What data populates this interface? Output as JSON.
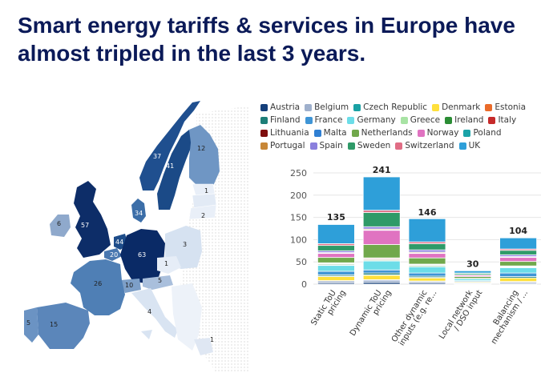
{
  "title": {
    "line1": "Smart energy tariffs & services in Europe have",
    "line2": "almost tripled in the last 3 years."
  },
  "map": {
    "labels": [
      {
        "country": "Norway",
        "value": "37"
      },
      {
        "country": "Sweden",
        "value": "41"
      },
      {
        "country": "Finland",
        "value": "12"
      },
      {
        "country": "Estonia",
        "value": "1"
      },
      {
        "country": "Latvia",
        "value": "2"
      },
      {
        "country": "Denmark",
        "value": "34"
      },
      {
        "country": "Ireland",
        "value": "6"
      },
      {
        "country": "United Kingdom",
        "value": "57"
      },
      {
        "country": "Netherlands",
        "value": "44"
      },
      {
        "country": "Belgium",
        "value": "20"
      },
      {
        "country": "Germany",
        "value": "63"
      },
      {
        "country": "Poland",
        "value": "3"
      },
      {
        "country": "Czech Republic",
        "value": "1"
      },
      {
        "country": "Austria",
        "value": "5"
      },
      {
        "country": "Switzerland",
        "value": "10"
      },
      {
        "country": "France",
        "value": "26"
      },
      {
        "country": "Italy",
        "value": "4"
      },
      {
        "country": "Spain",
        "value": "15"
      },
      {
        "country": "Portugal",
        "value": "5"
      },
      {
        "country": "Greece",
        "value": "1"
      }
    ]
  },
  "colors": {
    "Austria": "#143f7a",
    "Belgium": "#9fb0cc",
    "Czech Republic": "#19a1a4",
    "Denmark": "#ffe03c",
    "Estonia": "#ea6b2a",
    "Finland": "#1d7e78",
    "France": "#3f95d6",
    "Germany": "#6cdde8",
    "Greece": "#a8e3a4",
    "Ireland": "#2b8d35",
    "Italy": "#c62a2a",
    "Lithuania": "#7e0e0e",
    "Malta": "#2f7fd3",
    "Netherlands": "#71a84c",
    "Norway": "#e073c1",
    "Poland": "#1ba3a8",
    "Portugal": "#c78737",
    "Spain": "#8a7fdd",
    "Sweden": "#2f9a68",
    "Switzerland": "#e06d85",
    "UK": "#2e9fd9"
  },
  "chart_data": {
    "type": "bar",
    "stacked": true,
    "categories": [
      "Static ToU pricing",
      "Dynamic ToU pricing",
      "Other dynamic inputs (e.g. re...",
      "Local network / DSO input",
      "Balancing mechanism / ..."
    ],
    "category_lines": [
      [
        "Static ToU",
        "pricing"
      ],
      [
        "Dynamic ToU",
        "pricing"
      ],
      [
        "Other dynamic",
        "inputs (e.g. re..."
      ],
      [
        "Local network",
        "/ DSO input"
      ],
      [
        "Balancing",
        "mechanism / ..."
      ]
    ],
    "totals": [
      135,
      241,
      146,
      30,
      104
    ],
    "ylim": [
      0,
      250
    ],
    "yticks": [
      0,
      50,
      100,
      150,
      200,
      250
    ],
    "legend": [
      "Austria",
      "Belgium",
      "Czech Republic",
      "Denmark",
      "Estonia",
      "Finland",
      "France",
      "Germany",
      "Greece",
      "Ireland",
      "Italy",
      "Lithuania",
      "Malta",
      "Netherlands",
      "Norway",
      "Poland",
      "Portugal",
      "Spain",
      "Sweden",
      "Switzerland",
      "UK"
    ],
    "legend_rows": [
      [
        "Austria",
        "Belgium",
        "Czech Republic",
        "Denmark",
        "Estonia"
      ],
      [
        "Finland",
        "France",
        "Germany",
        "Greece",
        "Ireland",
        "Italy"
      ],
      [
        "Lithuania",
        "Malta",
        "Netherlands",
        "Norway",
        "Poland"
      ],
      [
        "Portugal",
        "Spain",
        "Sweden",
        "Switzerland",
        "UK"
      ]
    ],
    "series": [
      {
        "name": "Austria",
        "values": [
          3,
          4,
          3,
          1,
          2
        ]
      },
      {
        "name": "Belgium",
        "values": [
          4,
          5,
          3,
          2,
          3
        ]
      },
      {
        "name": "Czech Republic",
        "values": [
          1,
          1,
          1,
          0,
          1
        ]
      },
      {
        "name": "Denmark",
        "values": [
          9,
          10,
          7,
          2,
          8
        ]
      },
      {
        "name": "Estonia",
        "values": [
          1,
          1,
          1,
          0,
          0
        ]
      },
      {
        "name": "Finland",
        "values": [
          3,
          4,
          3,
          1,
          3
        ]
      },
      {
        "name": "France",
        "values": [
          8,
          7,
          7,
          2,
          8
        ]
      },
      {
        "name": "Germany",
        "values": [
          13,
          20,
          14,
          4,
          12
        ]
      },
      {
        "name": "Greece",
        "values": [
          1,
          1,
          1,
          0,
          1
        ]
      },
      {
        "name": "Ireland",
        "values": [
          2,
          2,
          2,
          1,
          1
        ]
      },
      {
        "name": "Italy",
        "values": [
          1,
          2,
          1,
          0,
          1
        ]
      },
      {
        "name": "Lithuania",
        "values": [
          1,
          1,
          1,
          0,
          1
        ]
      },
      {
        "name": "Malta",
        "values": [
          1,
          1,
          1,
          0,
          0
        ]
      },
      {
        "name": "Netherlands",
        "values": [
          12,
          30,
          14,
          4,
          10
        ]
      },
      {
        "name": "Norway",
        "values": [
          9,
          32,
          10,
          3,
          9
        ]
      },
      {
        "name": "Poland",
        "values": [
          1,
          1,
          1,
          0,
          1
        ]
      },
      {
        "name": "Portugal",
        "values": [
          1,
          2,
          2,
          0,
          1
        ]
      },
      {
        "name": "Spain",
        "values": [
          4,
          5,
          5,
          1,
          4
        ]
      },
      {
        "name": "Sweden",
        "values": [
          12,
          32,
          14,
          3,
          10
        ]
      },
      {
        "name": "Switzerland",
        "values": [
          4,
          5,
          4,
          1,
          3
        ]
      },
      {
        "name": "UK",
        "values": [
          43,
          75,
          52,
          5,
          25
        ]
      }
    ]
  }
}
